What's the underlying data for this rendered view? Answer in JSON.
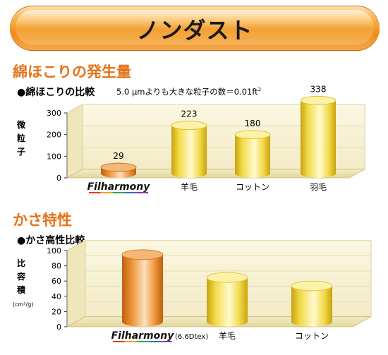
{
  "banner": {
    "title": "ノンダスト"
  },
  "sections": {
    "dust": {
      "title": "綿ほこりの発生量",
      "subtitle": "●綿ほこりの比較",
      "note_main": "5.0 μmよりも大きな粒子の数＝0.01ft",
      "note_sup": "2"
    },
    "bulk": {
      "title": "かさ特性",
      "subtitle": "●かさ高性比較"
    }
  },
  "chart_data": [
    {
      "type": "bar",
      "title": "綿ほこりの比較",
      "ylabel": "微粒子",
      "ylim": [
        0,
        300
      ],
      "yticks": [
        0,
        100,
        200,
        300
      ],
      "categories": [
        "Filharmony",
        "羊毛",
        "コットン",
        "羽毛"
      ],
      "values": [
        29,
        223,
        180,
        338
      ],
      "data_labels": [
        "29",
        "223",
        "180",
        "338"
      ],
      "colors": [
        "#e98a2a",
        "#f0d23a",
        "#f0d23a",
        "#f0d23a"
      ]
    },
    {
      "type": "bar",
      "title": "かさ高性比較",
      "ylabel": "比容積",
      "yunit": "(cm³/g)",
      "ylim": [
        0,
        100
      ],
      "yticks": [
        0,
        20,
        40,
        60,
        80,
        100
      ],
      "categories": [
        "Filharmony",
        "羊毛",
        "コットン"
      ],
      "category_notes": [
        "(6.6Dtex)",
        "",
        ""
      ],
      "values": [
        88,
        58,
        47
      ],
      "colors": [
        "#e98a2a",
        "#f0d23a",
        "#f0d23a"
      ]
    }
  ]
}
